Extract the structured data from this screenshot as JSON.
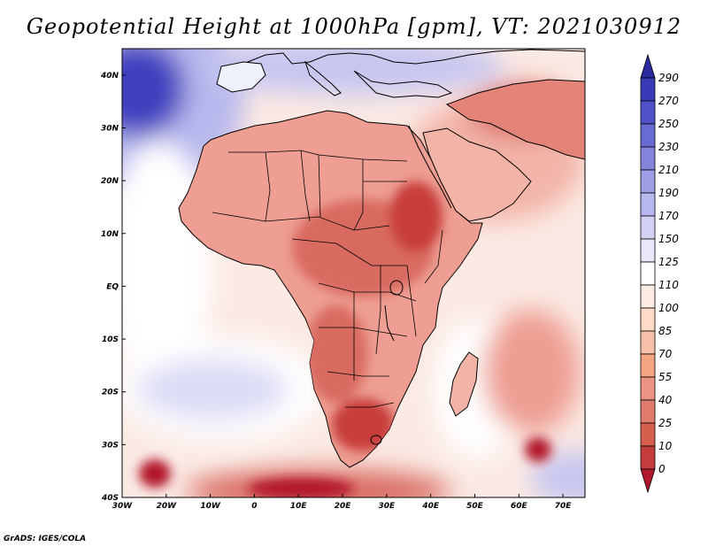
{
  "title": "Geopotential Height at 1000hPa [gpm], VT: 2021030912",
  "credit": "GrADS: IGES/COLA",
  "map": {
    "lon_range": [
      -30,
      75
    ],
    "lat_range": [
      -40,
      45
    ],
    "x_ticks": [
      "30W",
      "20W",
      "10W",
      "0",
      "10E",
      "20E",
      "30E",
      "40E",
      "50E",
      "60E",
      "70E"
    ],
    "x_tick_values": [
      -30,
      -20,
      -10,
      0,
      10,
      20,
      30,
      40,
      50,
      60,
      70
    ],
    "y_ticks": [
      "40S",
      "30S",
      "20S",
      "10S",
      "EQ",
      "10N",
      "20N",
      "30N",
      "40N"
    ],
    "y_tick_values": [
      -40,
      -30,
      -20,
      -10,
      0,
      10,
      20,
      30,
      40
    ]
  },
  "colorbar": {
    "labels": [
      "0",
      "10",
      "25",
      "40",
      "55",
      "70",
      "85",
      "100",
      "110",
      "125",
      "150",
      "170",
      "190",
      "210",
      "230",
      "250",
      "270",
      "290"
    ],
    "colors": [
      "#b2182b",
      "#c43c3c",
      "#d6604d",
      "#e07b6b",
      "#eb9484",
      "#f4a582",
      "#f7c0a8",
      "#fddbc7",
      "#fcebe3",
      "#ffffff",
      "#e8e8f8",
      "#d1d1f3",
      "#b8b8ee",
      "#9e9ee6",
      "#8484dd",
      "#6a6ad3",
      "#5050c8",
      "#3a3ab8",
      "#2a2a9e"
    ]
  },
  "field_colors": {
    "ocean": "#fbe9e3",
    "land": "#ee9e92",
    "land_core": "#d96a60",
    "low_center": "#c83c3a",
    "high_light": "#dcdcf6",
    "high_strong": "#4040bf",
    "sea_white": "#ffffff"
  }
}
